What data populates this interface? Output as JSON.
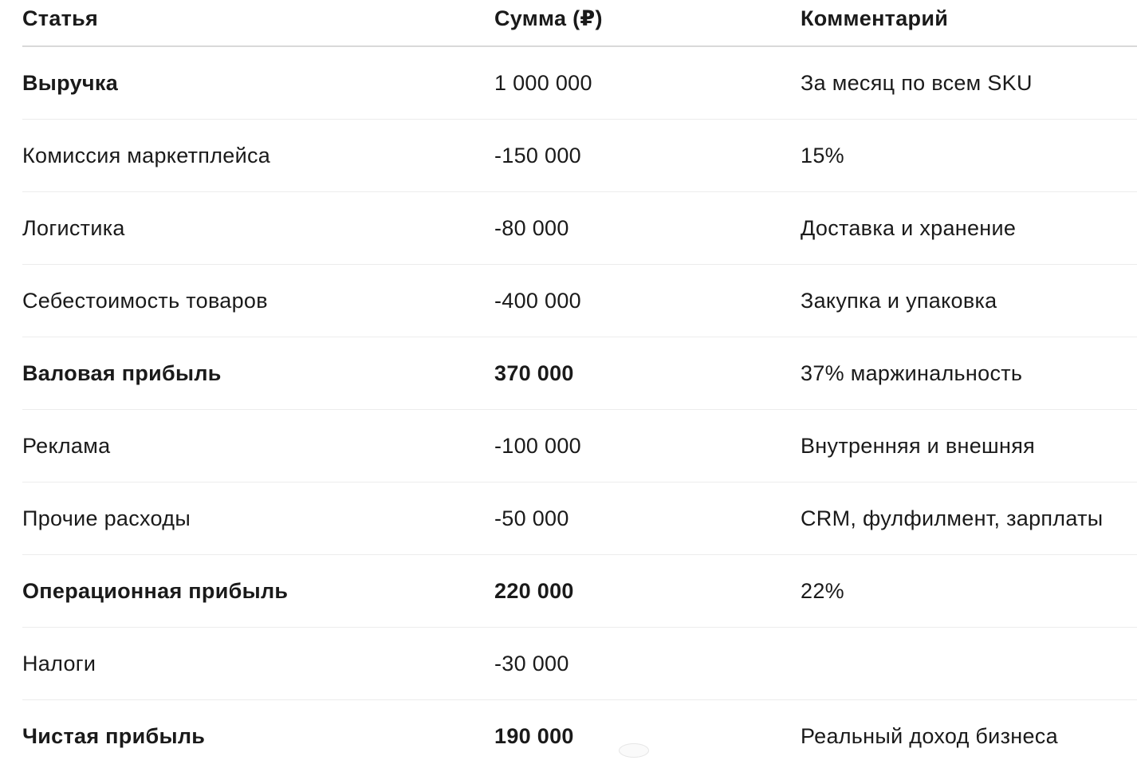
{
  "table": {
    "headers": [
      "Статья",
      "Сумма (₽)",
      "Комментарий"
    ],
    "rows": [
      {
        "item": "Выручка",
        "amount": "1 000 000",
        "comment": "За месяц по всем SKU"
      },
      {
        "item": "Комиссия маркетплейса",
        "amount": "-150 000",
        "comment": "15%"
      },
      {
        "item": "Логистика",
        "amount": "-80 000",
        "comment": "Доставка и хранение"
      },
      {
        "item": "Себестоимость товаров",
        "amount": "-400 000",
        "comment": "Закупка и упаковка"
      },
      {
        "item": "Валовая прибыль",
        "amount": "370 000",
        "comment": "37% маржинальность"
      },
      {
        "item": "Реклама",
        "amount": "-100 000",
        "comment": "Внутренняя и внешняя"
      },
      {
        "item": "Прочие расходы",
        "amount": "-50 000",
        "comment": "CRM, фулфилмент, зарплаты"
      },
      {
        "item": "Операционная прибыль",
        "amount": "220 000",
        "comment": "22%"
      },
      {
        "item": "Налоги",
        "amount": "-30 000",
        "comment": ""
      },
      {
        "item": "Чистая прибыль",
        "amount": "190 000",
        "comment": "Реальный доход бизнеса"
      }
    ]
  }
}
